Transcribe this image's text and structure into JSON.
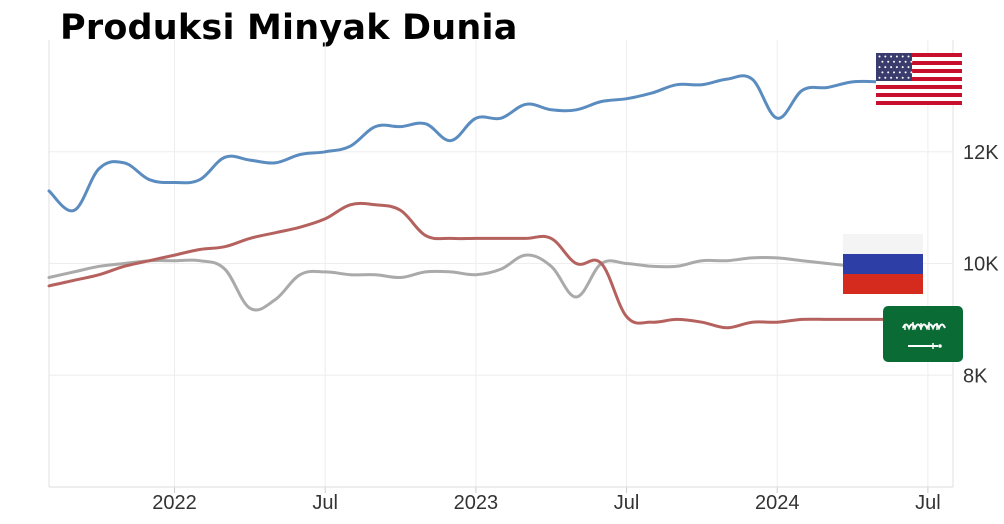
{
  "title": "Produksi Minyak Dunia",
  "chart_data": {
    "type": "line",
    "title": "Produksi Minyak Dunia",
    "xlabel": "",
    "ylabel": "",
    "x_ticks": [
      {
        "label": "2022",
        "x": "2022-01"
      },
      {
        "label": "Jul",
        "x": "2022-07"
      },
      {
        "label": "2023",
        "x": "2023-01"
      },
      {
        "label": "Jul",
        "x": "2023-07"
      },
      {
        "label": "2024",
        "x": "2024-01"
      },
      {
        "label": "Jul",
        "x": "2024-07"
      }
    ],
    "y_ticks": [
      {
        "label": "8K",
        "value": 8000
      },
      {
        "label": "10K",
        "value": 10000
      },
      {
        "label": "12K",
        "value": 12000
      }
    ],
    "xlim": [
      "2021-08",
      "2024-08"
    ],
    "ylim": [
      6000,
      14000
    ],
    "grid": true,
    "legend": "flags at right end of each line",
    "series": [
      {
        "flag": "united-states-flag",
        "color": "#5b8cc0",
        "points": [
          [
            "2021-08",
            11300
          ],
          [
            "2021-09",
            10950
          ],
          [
            "2021-10",
            11700
          ],
          [
            "2021-11",
            11800
          ],
          [
            "2021-12",
            11500
          ],
          [
            "2022-01",
            11450
          ],
          [
            "2022-02",
            11500
          ],
          [
            "2022-03",
            11900
          ],
          [
            "2022-04",
            11850
          ],
          [
            "2022-05",
            11800
          ],
          [
            "2022-06",
            11950
          ],
          [
            "2022-07",
            12000
          ],
          [
            "2022-08",
            12100
          ],
          [
            "2022-09",
            12450
          ],
          [
            "2022-10",
            12450
          ],
          [
            "2022-11",
            12500
          ],
          [
            "2022-12",
            12200
          ],
          [
            "2023-01",
            12600
          ],
          [
            "2023-02",
            12600
          ],
          [
            "2023-03",
            12850
          ],
          [
            "2023-04",
            12750
          ],
          [
            "2023-05",
            12750
          ],
          [
            "2023-06",
            12900
          ],
          [
            "2023-07",
            12950
          ],
          [
            "2023-08",
            13050
          ],
          [
            "2023-09",
            13200
          ],
          [
            "2023-10",
            13200
          ],
          [
            "2023-11",
            13300
          ],
          [
            "2023-12",
            13300
          ],
          [
            "2024-01",
            12600
          ],
          [
            "2024-02",
            13100
          ],
          [
            "2024-03",
            13150
          ],
          [
            "2024-04",
            13250
          ],
          [
            "2024-05",
            13250
          ],
          [
            "2024-06",
            13200
          ]
        ]
      },
      {
        "flag": "russia-flag",
        "color": "#aaaaaa",
        "points": [
          [
            "2021-08",
            9750
          ],
          [
            "2021-09",
            9850
          ],
          [
            "2021-10",
            9950
          ],
          [
            "2021-11",
            10000
          ],
          [
            "2021-12",
            10050
          ],
          [
            "2022-01",
            10050
          ],
          [
            "2022-02",
            10050
          ],
          [
            "2022-03",
            9900
          ],
          [
            "2022-04",
            9200
          ],
          [
            "2022-05",
            9350
          ],
          [
            "2022-06",
            9800
          ],
          [
            "2022-07",
            9850
          ],
          [
            "2022-08",
            9800
          ],
          [
            "2022-09",
            9800
          ],
          [
            "2022-10",
            9750
          ],
          [
            "2022-11",
            9850
          ],
          [
            "2022-12",
            9850
          ],
          [
            "2023-01",
            9800
          ],
          [
            "2023-02",
            9900
          ],
          [
            "2023-03",
            10150
          ],
          [
            "2023-04",
            9950
          ],
          [
            "2023-05",
            9400
          ],
          [
            "2023-06",
            10000
          ],
          [
            "2023-07",
            10000
          ],
          [
            "2023-08",
            9950
          ],
          [
            "2023-09",
            9950
          ],
          [
            "2023-10",
            10050
          ],
          [
            "2023-11",
            10050
          ],
          [
            "2023-12",
            10100
          ],
          [
            "2024-01",
            10100
          ],
          [
            "2024-02",
            10050
          ],
          [
            "2024-03",
            10000
          ],
          [
            "2024-04",
            9950
          ]
        ]
      },
      {
        "flag": "saudi-arabia-flag",
        "color": "#b5625f",
        "points": [
          [
            "2021-08",
            9600
          ],
          [
            "2021-09",
            9700
          ],
          [
            "2021-10",
            9800
          ],
          [
            "2021-11",
            9950
          ],
          [
            "2021-12",
            10050
          ],
          [
            "2022-01",
            10150
          ],
          [
            "2022-02",
            10250
          ],
          [
            "2022-03",
            10300
          ],
          [
            "2022-04",
            10450
          ],
          [
            "2022-05",
            10550
          ],
          [
            "2022-06",
            10650
          ],
          [
            "2022-07",
            10800
          ],
          [
            "2022-08",
            11050
          ],
          [
            "2022-09",
            11050
          ],
          [
            "2022-10",
            10950
          ],
          [
            "2022-11",
            10500
          ],
          [
            "2022-12",
            10450
          ],
          [
            "2023-01",
            10450
          ],
          [
            "2023-02",
            10450
          ],
          [
            "2023-03",
            10450
          ],
          [
            "2023-04",
            10450
          ],
          [
            "2023-05",
            10000
          ],
          [
            "2023-06",
            10000
          ],
          [
            "2023-07",
            9050
          ],
          [
            "2023-08",
            8950
          ],
          [
            "2023-09",
            9000
          ],
          [
            "2023-10",
            8950
          ],
          [
            "2023-11",
            8850
          ],
          [
            "2023-12",
            8950
          ],
          [
            "2024-01",
            8950
          ],
          [
            "2024-02",
            9000
          ],
          [
            "2024-03",
            9000
          ],
          [
            "2024-04",
            9000
          ],
          [
            "2024-05",
            9000
          ],
          [
            "2024-06",
            9000
          ]
        ]
      }
    ]
  }
}
